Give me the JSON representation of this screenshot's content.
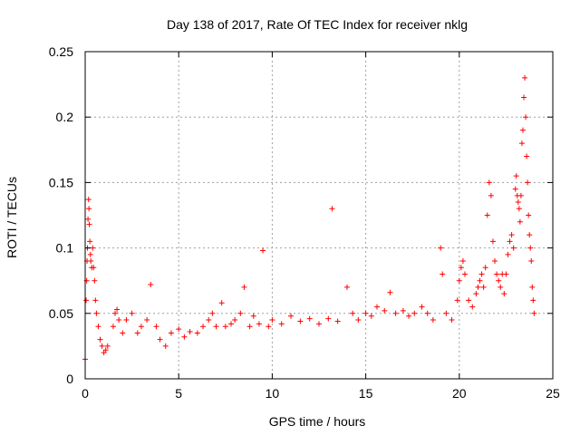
{
  "chart_data": {
    "type": "scatter",
    "title": "Day 138 of 2017, Rate Of TEC Index for receiver nklg",
    "xlabel": "GPS time / hours",
    "ylabel": "ROTI / TECUs",
    "xlim": [
      0,
      25
    ],
    "ylim": [
      0,
      0.25
    ],
    "x_ticks": [
      0,
      5,
      10,
      15,
      20,
      25
    ],
    "x_tick_labels": [
      "0",
      "5",
      "10",
      "15",
      "20",
      "25"
    ],
    "y_ticks": [
      0,
      0.05,
      0.1,
      0.15,
      0.2,
      0.25
    ],
    "y_tick_labels": [
      "0",
      "0.05",
      "0.1",
      "0.15",
      "0.2",
      "0.25"
    ],
    "grid": true,
    "marker": "+",
    "color": "#ff0000",
    "series": [
      {
        "points": [
          [
            0.0,
            0.015
          ],
          [
            0.05,
            0.06
          ],
          [
            0.08,
            0.075
          ],
          [
            0.1,
            0.09
          ],
          [
            0.12,
            0.1
          ],
          [
            0.15,
            0.122
          ],
          [
            0.18,
            0.137
          ],
          [
            0.2,
            0.13
          ],
          [
            0.22,
            0.118
          ],
          [
            0.25,
            0.105
          ],
          [
            0.28,
            0.095
          ],
          [
            0.3,
            0.09
          ],
          [
            0.35,
            0.085
          ],
          [
            0.4,
            0.1
          ],
          [
            0.45,
            0.085
          ],
          [
            0.5,
            0.075
          ],
          [
            0.55,
            0.06
          ],
          [
            0.6,
            0.05
          ],
          [
            0.7,
            0.04
          ],
          [
            0.8,
            0.03
          ],
          [
            0.9,
            0.025
          ],
          [
            1.0,
            0.02
          ],
          [
            1.1,
            0.022
          ],
          [
            1.2,
            0.025
          ],
          [
            1.5,
            0.04
          ],
          [
            1.6,
            0.05
          ],
          [
            1.7,
            0.053
          ],
          [
            1.8,
            0.045
          ],
          [
            2.0,
            0.035
          ],
          [
            2.2,
            0.045
          ],
          [
            2.5,
            0.05
          ],
          [
            2.8,
            0.035
          ],
          [
            3.0,
            0.04
          ],
          [
            3.3,
            0.045
          ],
          [
            3.5,
            0.072
          ],
          [
            3.8,
            0.04
          ],
          [
            4.0,
            0.03
          ],
          [
            4.3,
            0.025
          ],
          [
            4.6,
            0.035
          ],
          [
            5.0,
            0.038
          ],
          [
            5.3,
            0.032
          ],
          [
            5.6,
            0.036
          ],
          [
            6.0,
            0.035
          ],
          [
            6.3,
            0.04
          ],
          [
            6.6,
            0.045
          ],
          [
            6.8,
            0.05
          ],
          [
            7.0,
            0.04
          ],
          [
            7.3,
            0.058
          ],
          [
            7.5,
            0.04
          ],
          [
            7.8,
            0.042
          ],
          [
            8.0,
            0.045
          ],
          [
            8.3,
            0.05
          ],
          [
            8.5,
            0.07
          ],
          [
            8.8,
            0.04
          ],
          [
            9.0,
            0.048
          ],
          [
            9.3,
            0.042
          ],
          [
            9.5,
            0.098
          ],
          [
            9.8,
            0.04
          ],
          [
            10.0,
            0.045
          ],
          [
            10.5,
            0.042
          ],
          [
            11.0,
            0.048
          ],
          [
            11.5,
            0.044
          ],
          [
            12.0,
            0.046
          ],
          [
            12.5,
            0.042
          ],
          [
            13.0,
            0.046
          ],
          [
            13.2,
            0.13
          ],
          [
            13.5,
            0.044
          ],
          [
            14.0,
            0.07
          ],
          [
            14.3,
            0.05
          ],
          [
            14.6,
            0.045
          ],
          [
            15.0,
            0.05
          ],
          [
            15.3,
            0.048
          ],
          [
            15.6,
            0.055
          ],
          [
            16.0,
            0.052
          ],
          [
            16.3,
            0.066
          ],
          [
            16.6,
            0.05
          ],
          [
            17.0,
            0.052
          ],
          [
            17.3,
            0.048
          ],
          [
            17.6,
            0.05
          ],
          [
            18.0,
            0.055
          ],
          [
            18.3,
            0.05
          ],
          [
            18.6,
            0.045
          ],
          [
            19.0,
            0.1
          ],
          [
            19.1,
            0.08
          ],
          [
            19.3,
            0.05
          ],
          [
            19.6,
            0.045
          ],
          [
            19.9,
            0.06
          ],
          [
            20.0,
            0.075
          ],
          [
            20.1,
            0.085
          ],
          [
            20.2,
            0.09
          ],
          [
            20.3,
            0.08
          ],
          [
            20.5,
            0.06
          ],
          [
            20.7,
            0.055
          ],
          [
            20.9,
            0.065
          ],
          [
            21.0,
            0.07
          ],
          [
            21.1,
            0.075
          ],
          [
            21.2,
            0.08
          ],
          [
            21.3,
            0.07
          ],
          [
            21.4,
            0.085
          ],
          [
            21.5,
            0.125
          ],
          [
            21.6,
            0.15
          ],
          [
            21.7,
            0.14
          ],
          [
            21.8,
            0.105
          ],
          [
            21.9,
            0.09
          ],
          [
            22.0,
            0.08
          ],
          [
            22.1,
            0.075
          ],
          [
            22.2,
            0.07
          ],
          [
            22.3,
            0.08
          ],
          [
            22.4,
            0.065
          ],
          [
            22.5,
            0.08
          ],
          [
            22.6,
            0.095
          ],
          [
            22.7,
            0.105
          ],
          [
            22.8,
            0.11
          ],
          [
            22.9,
            0.1
          ],
          [
            23.0,
            0.145
          ],
          [
            23.05,
            0.155
          ],
          [
            23.1,
            0.14
          ],
          [
            23.15,
            0.135
          ],
          [
            23.2,
            0.13
          ],
          [
            23.25,
            0.12
          ],
          [
            23.3,
            0.14
          ],
          [
            23.35,
            0.18
          ],
          [
            23.4,
            0.19
          ],
          [
            23.45,
            0.215
          ],
          [
            23.5,
            0.23
          ],
          [
            23.55,
            0.2
          ],
          [
            23.6,
            0.17
          ],
          [
            23.65,
            0.15
          ],
          [
            23.7,
            0.125
          ],
          [
            23.75,
            0.11
          ],
          [
            23.8,
            0.1
          ],
          [
            23.85,
            0.09
          ],
          [
            23.9,
            0.07
          ],
          [
            23.95,
            0.06
          ],
          [
            24.0,
            0.05
          ]
        ]
      }
    ]
  }
}
